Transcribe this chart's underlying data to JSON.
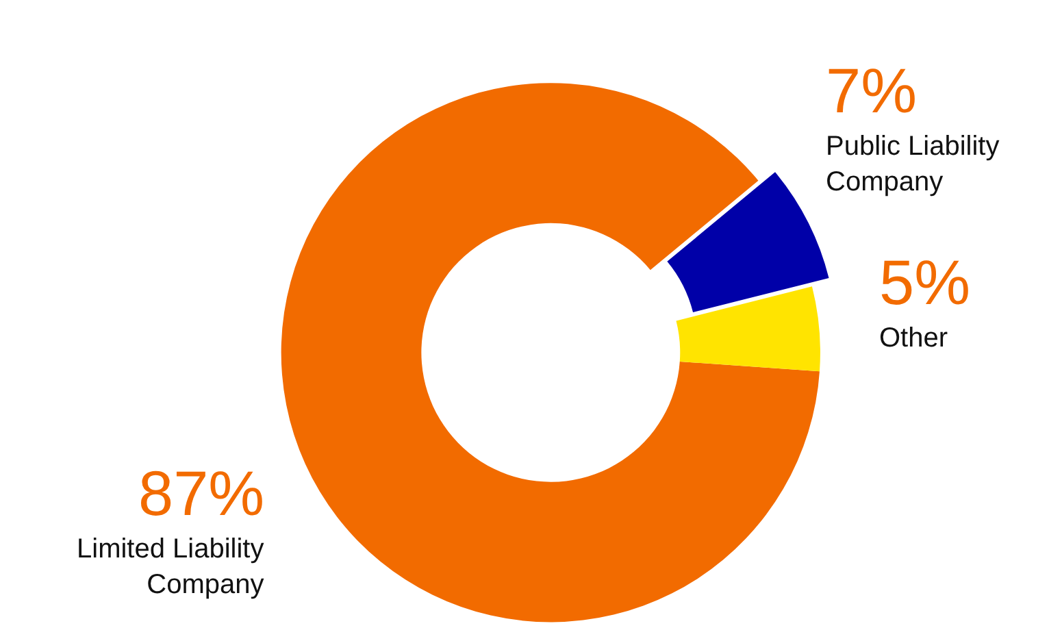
{
  "chart_data": {
    "type": "donut",
    "categories": [
      "Limited Liability Company",
      "Public Liability Company",
      "Other"
    ],
    "values": [
      87,
      7,
      5
    ],
    "colors": [
      "#f26b00",
      "#0000a8",
      "#ffe400"
    ],
    "value_labels": [
      "87%",
      "7%",
      "5%"
    ],
    "legend": false
  }
}
